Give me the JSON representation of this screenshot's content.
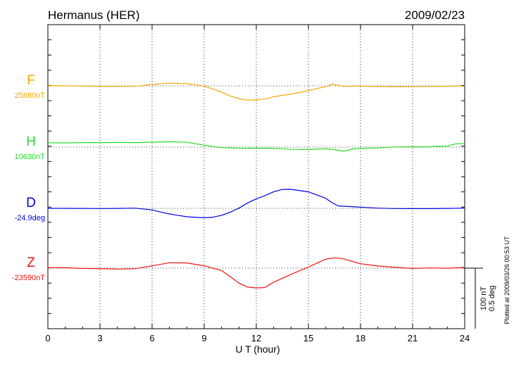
{
  "header": {
    "station": "Hermanus (HER)",
    "date": "2009/02/23"
  },
  "footer_note": "Plotted at 2009/03/26 00:53 UT",
  "scale_bar": {
    "label_nt": "100 nT",
    "label_deg": "0.5 deg"
  },
  "chart_data": {
    "type": "line",
    "xlabel": "U T (hour)",
    "xlim": [
      0,
      24
    ],
    "xticks": [
      0,
      3,
      6,
      9,
      12,
      15,
      18,
      21,
      24
    ],
    "grid": true,
    "series": [
      {
        "name": "F",
        "baseline_label": "25880nT",
        "color": "#f5a800",
        "x": [
          0,
          1,
          2,
          3,
          4,
          5,
          6,
          7,
          8,
          9,
          10,
          10.5,
          11,
          11.5,
          12,
          12.5,
          13,
          14,
          15,
          16,
          16.4,
          17,
          18,
          19,
          20,
          21,
          22,
          23,
          24
        ],
        "offset_nT": [
          -0.1,
          -0.1,
          0.5,
          0.8,
          1.1,
          1.0,
          -2.8,
          -5.4,
          -4.7,
          0.5,
          12.6,
          20.6,
          25.8,
          29.0,
          28.5,
          26.7,
          22.0,
          16.5,
          9.4,
          1.6,
          -3.5,
          1.1,
          0.5,
          1.3,
          1.5,
          1.5,
          1.2,
          0.8,
          0.5
        ]
      },
      {
        "name": "H",
        "baseline_label": "10630nT",
        "color": "#22dd22",
        "x": [
          0,
          1,
          2,
          3,
          4,
          5,
          6,
          7,
          8,
          9,
          10,
          11,
          12,
          13,
          14,
          15,
          16,
          16.5,
          17,
          17.5,
          18,
          19,
          20,
          21,
          22,
          23,
          23.5,
          24
        ],
        "offset_nT": [
          -8.9,
          -8.6,
          -9.0,
          -9.2,
          -9.6,
          -9.2,
          -10.0,
          -10.8,
          -9.7,
          -4.0,
          1.0,
          2.4,
          2.2,
          2.4,
          4.6,
          4.8,
          3.3,
          5.0,
          8.5,
          4.2,
          2.6,
          1.7,
          -0.3,
          -0.6,
          -0.7,
          -2.3,
          -6.8,
          -6.8
        ]
      },
      {
        "name": "D",
        "baseline_label": "-24.9deg",
        "color": "#0000dd",
        "x": [
          0,
          1,
          2,
          3,
          4,
          5,
          6,
          6.5,
          7,
          8,
          9,
          9.5,
          10,
          10.5,
          11,
          11.5,
          12,
          12.5,
          13,
          13.5,
          14,
          15,
          16,
          16.3,
          16.7,
          17,
          18,
          19,
          20,
          21,
          22,
          23,
          24
        ],
        "offset_nT": [
          0.0,
          0.0,
          0.2,
          0.4,
          0.2,
          -0.4,
          3.1,
          7.5,
          11.4,
          17.2,
          19.2,
          18.0,
          14.1,
          7.8,
          -0.4,
          -11.0,
          -19.2,
          -25.9,
          -33.7,
          -38.4,
          -38.6,
          -33.5,
          -20.4,
          -12.9,
          -5.1,
          -4.3,
          -2.4,
          -0.4,
          0.4,
          0.6,
          0.6,
          0.2,
          -0.4
        ]
      },
      {
        "name": "Z",
        "baseline_label": "-23590nT",
        "color": "#ee1111",
        "x": [
          0,
          1,
          2,
          3,
          4,
          5,
          6,
          7,
          8,
          9,
          10,
          10.5,
          11,
          11.5,
          12,
          12.5,
          13,
          14,
          15,
          16,
          16.5,
          17,
          18,
          19,
          20,
          21,
          22,
          23,
          24
        ],
        "offset_nT": [
          -0.8,
          -0.8,
          0.6,
          0.8,
          1.8,
          1.2,
          -4.7,
          -11.0,
          -10.6,
          -4.9,
          4.9,
          17.2,
          30.3,
          38.4,
          40.2,
          39.3,
          28.5,
          12.5,
          -2.3,
          -18.4,
          -21.1,
          -19.0,
          -9.0,
          -4.5,
          -1.6,
          0.6,
          -0.4,
          0.2,
          -1.4
        ]
      }
    ]
  }
}
